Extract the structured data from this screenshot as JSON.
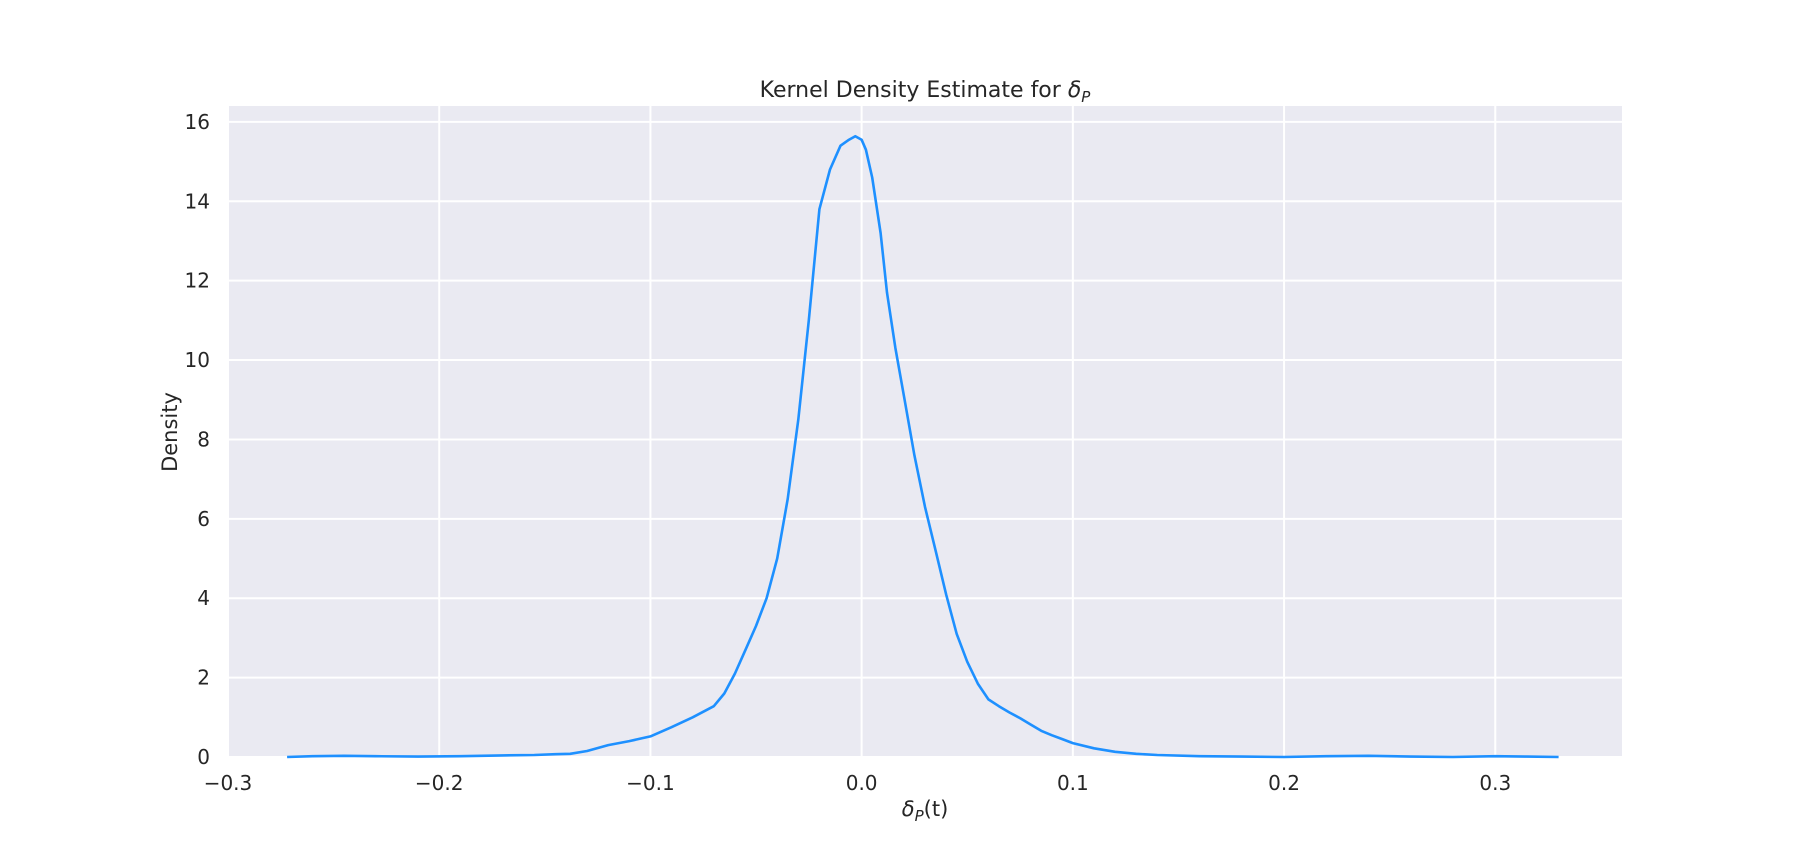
{
  "chart_data": {
    "type": "line",
    "title": "Kernel Density Estimate for ",
    "title_math": {
      "base": "δ",
      "sub": "P"
    },
    "xlabel": {
      "base": "δ",
      "sub": "P",
      "suffix": "(t)"
    },
    "ylabel": "Density",
    "xlim": [
      -0.3,
      0.36
    ],
    "ylim": [
      0,
      16.4
    ],
    "xticks": [
      -0.3,
      -0.2,
      -0.1,
      0.0,
      0.1,
      0.2,
      0.3
    ],
    "xtick_labels": [
      "−0.3",
      "−0.2",
      "−0.1",
      "0.0",
      "0.1",
      "0.2",
      "0.3"
    ],
    "yticks": [
      0,
      2,
      4,
      6,
      8,
      10,
      12,
      14,
      16
    ],
    "ytick_labels": [
      "0",
      "2",
      "4",
      "6",
      "8",
      "10",
      "12",
      "14",
      "16"
    ],
    "grid": true,
    "background_color": "#eaeaf2",
    "line_color": "#1e90ff",
    "series": [
      {
        "x": [
          -0.272,
          -0.26,
          -0.245,
          -0.23,
          -0.21,
          -0.19,
          -0.17,
          -0.155,
          -0.145,
          -0.138,
          -0.13,
          -0.12,
          -0.11,
          -0.1,
          -0.09,
          -0.08,
          -0.07,
          -0.065,
          -0.06,
          -0.055,
          -0.05,
          -0.045,
          -0.04,
          -0.035,
          -0.03,
          -0.025,
          -0.02,
          -0.015,
          -0.01,
          -0.006,
          -0.003,
          0.0,
          0.002,
          0.005,
          0.009,
          0.012,
          0.016,
          0.02,
          0.025,
          0.03,
          0.035,
          0.04,
          0.045,
          0.05,
          0.055,
          0.06,
          0.065,
          0.07,
          0.075,
          0.08,
          0.085,
          0.09,
          0.095,
          0.1,
          0.11,
          0.12,
          0.13,
          0.14,
          0.16,
          0.18,
          0.2,
          0.22,
          0.24,
          0.26,
          0.28,
          0.3,
          0.315,
          0.33
        ],
        "y": [
          0.0,
          0.02,
          0.03,
          0.02,
          0.01,
          0.02,
          0.04,
          0.05,
          0.07,
          0.08,
          0.15,
          0.3,
          0.4,
          0.52,
          0.75,
          1.0,
          1.28,
          1.6,
          2.1,
          2.7,
          3.3,
          4.0,
          5.0,
          6.5,
          8.5,
          11.0,
          13.8,
          14.8,
          15.4,
          15.55,
          15.64,
          15.55,
          15.3,
          14.6,
          13.2,
          11.7,
          10.3,
          9.1,
          7.6,
          6.3,
          5.2,
          4.1,
          3.1,
          2.4,
          1.85,
          1.45,
          1.28,
          1.12,
          0.98,
          0.82,
          0.66,
          0.55,
          0.45,
          0.35,
          0.22,
          0.13,
          0.08,
          0.05,
          0.02,
          0.01,
          0.0,
          0.02,
          0.03,
          0.01,
          0.0,
          0.02,
          0.01,
          0.0
        ]
      }
    ]
  }
}
